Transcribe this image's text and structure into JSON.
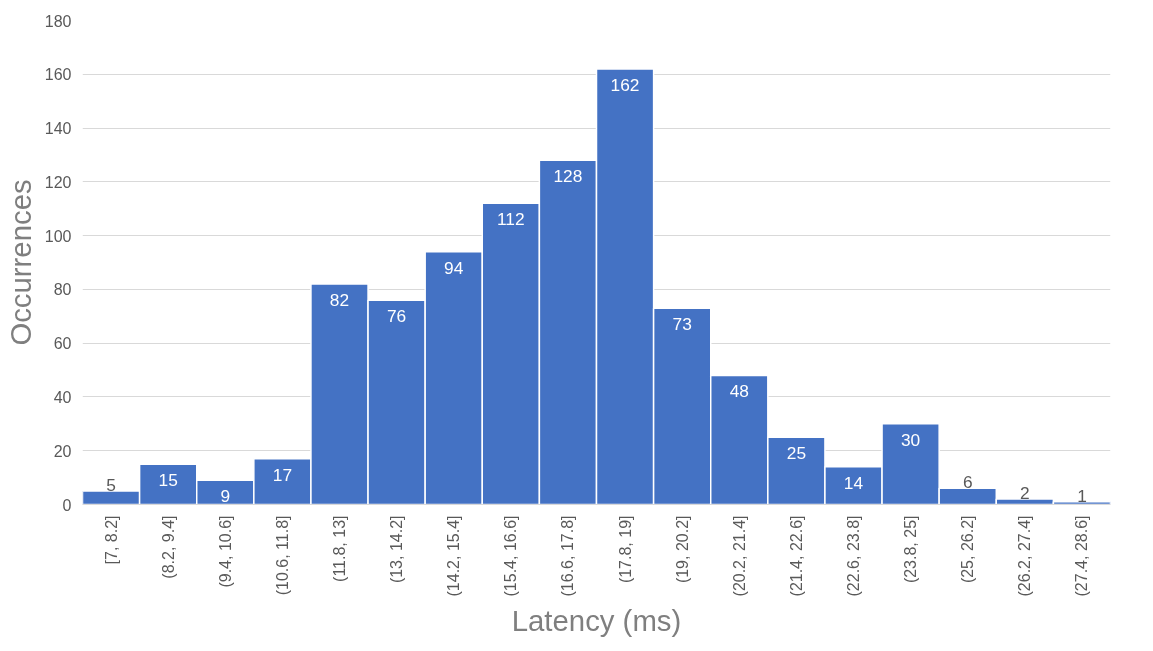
{
  "chart_data": {
    "type": "bar",
    "xlabel": "Latency (ms)",
    "ylabel": "Occurrences",
    "categories": [
      "[7, 8.2]",
      "(8.2, 9.4]",
      "(9.4, 10.6]",
      "(10.6, 11.8]",
      "(11.8, 13]",
      "(13, 14.2]",
      "(14.2, 15.4]",
      "(15.4, 16.6]",
      "(16.6, 17.8]",
      "(17.8, 19]",
      "(19, 20.2]",
      "(20.2, 21.4]",
      "(21.4, 22.6]",
      "(22.6, 23.8]",
      "(23.8, 25]",
      "(25, 26.2]",
      "(26.2, 27.4]",
      "(27.4, 28.6]"
    ],
    "values": [
      5,
      15,
      9,
      17,
      82,
      76,
      94,
      112,
      128,
      162,
      73,
      48,
      25,
      14,
      30,
      6,
      2,
      1
    ],
    "color": "#4472c4",
    "ylim": [
      0,
      180
    ],
    "yticks": [
      0,
      20,
      40,
      60,
      80,
      100,
      120,
      140,
      160,
      180
    ],
    "grid": "y",
    "data_labels": true
  }
}
